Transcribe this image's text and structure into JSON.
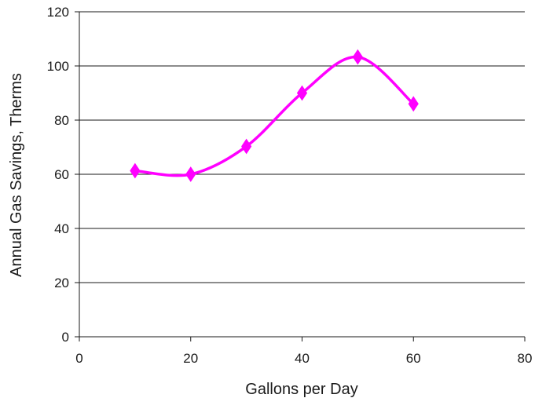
{
  "chart_data": {
    "type": "line",
    "xlabel": "Gallons per Day",
    "ylabel": "Annual Gas Savings, Therms",
    "xlim": [
      0,
      80
    ],
    "ylim": [
      0,
      120
    ],
    "x_ticks": [
      0,
      20,
      40,
      60,
      80
    ],
    "y_ticks": [
      0,
      20,
      40,
      60,
      80,
      100,
      120
    ],
    "grid": "horizontal",
    "legend": "none",
    "series": [
      {
        "color": "#ff00ff",
        "marker": "diamond",
        "smooth": true,
        "points": [
          {
            "x": 10,
            "y": 61.3
          },
          {
            "x": 20,
            "y": 60.0
          },
          {
            "x": 30,
            "y": 70.3
          },
          {
            "x": 40,
            "y": 90.0
          },
          {
            "x": 50,
            "y": 103.3
          },
          {
            "x": 60,
            "y": 86.0
          }
        ]
      }
    ]
  }
}
